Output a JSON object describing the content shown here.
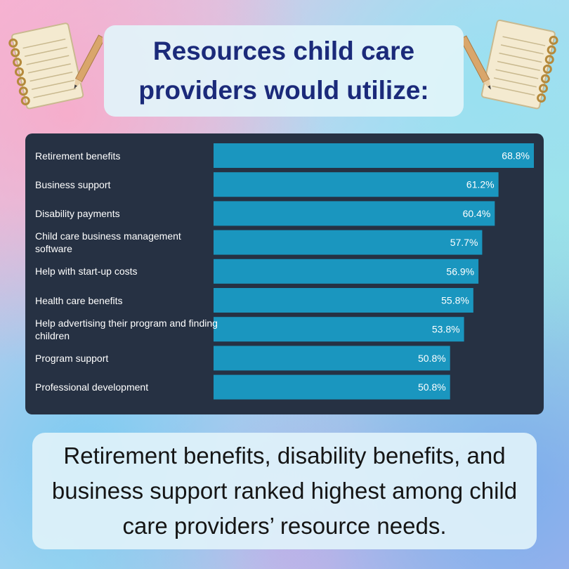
{
  "title": "Resources child care providers would utilize:",
  "summary": "Retirement benefits, disability benefits, and business support ranked highest among child care providers’ resource needs.",
  "colors": {
    "panel": "#263143",
    "bar": "#1a96bf",
    "title": "#1b2a7a"
  },
  "icons": {
    "left": "notepad-pencil-icon",
    "right": "notepad-pencil-icon"
  },
  "chart_data": {
    "type": "bar",
    "orientation": "horizontal",
    "title": "Resources child care providers would utilize:",
    "xlabel": "",
    "ylabel": "",
    "xlim": [
      0,
      70
    ],
    "unit": "%",
    "categories": [
      "Retirement benefits",
      "Business support",
      "Disability payments",
      "Child care business management software",
      "Help with start-up costs",
      "Health care benefits",
      "Help advertising their program and finding children",
      "Program support",
      "Professional development"
    ],
    "values": [
      68.8,
      61.2,
      60.4,
      57.7,
      56.9,
      55.8,
      53.8,
      50.8,
      50.8
    ],
    "value_labels": [
      "68.8%",
      "61.2%",
      "60.4%",
      "57.7%",
      "56.9%",
      "55.8%",
      "53.8%",
      "50.8%",
      "50.8%"
    ]
  }
}
